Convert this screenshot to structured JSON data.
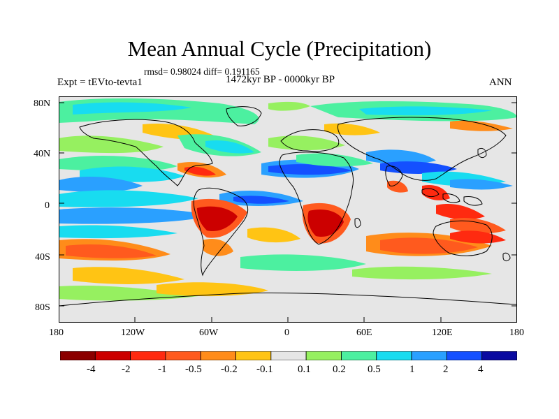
{
  "title": "Mean Annual Cycle (Precipitation)",
  "stats_line": "rmsd= 0.98024  diff= 0.191165",
  "subtitle": "1472kyr BP - 0000kyr BP",
  "left_label": "Expt = tEVto-tevta1",
  "right_label": "ANN",
  "lat_labels": [
    "80N",
    "40N",
    "0",
    "40S",
    "80S"
  ],
  "lon_labels": [
    "180",
    "120W",
    "60W",
    "0",
    "60E",
    "120E",
    "180"
  ],
  "colorbar": {
    "colors": [
      "#8b0000",
      "#cc0000",
      "#ff2a10",
      "#ff5a1e",
      "#ff8c1a",
      "#ffc414",
      "#e6e6e6",
      "#96f060",
      "#4cf0a0",
      "#18dcf0",
      "#2aa0ff",
      "#1450ff",
      "#0a0aa0"
    ],
    "labels": [
      "-4",
      "-2",
      "-1",
      "-0.5",
      "-0.2",
      "-0.1",
      "0.1",
      "0.2",
      "0.5",
      "1",
      "2",
      "4"
    ]
  }
}
